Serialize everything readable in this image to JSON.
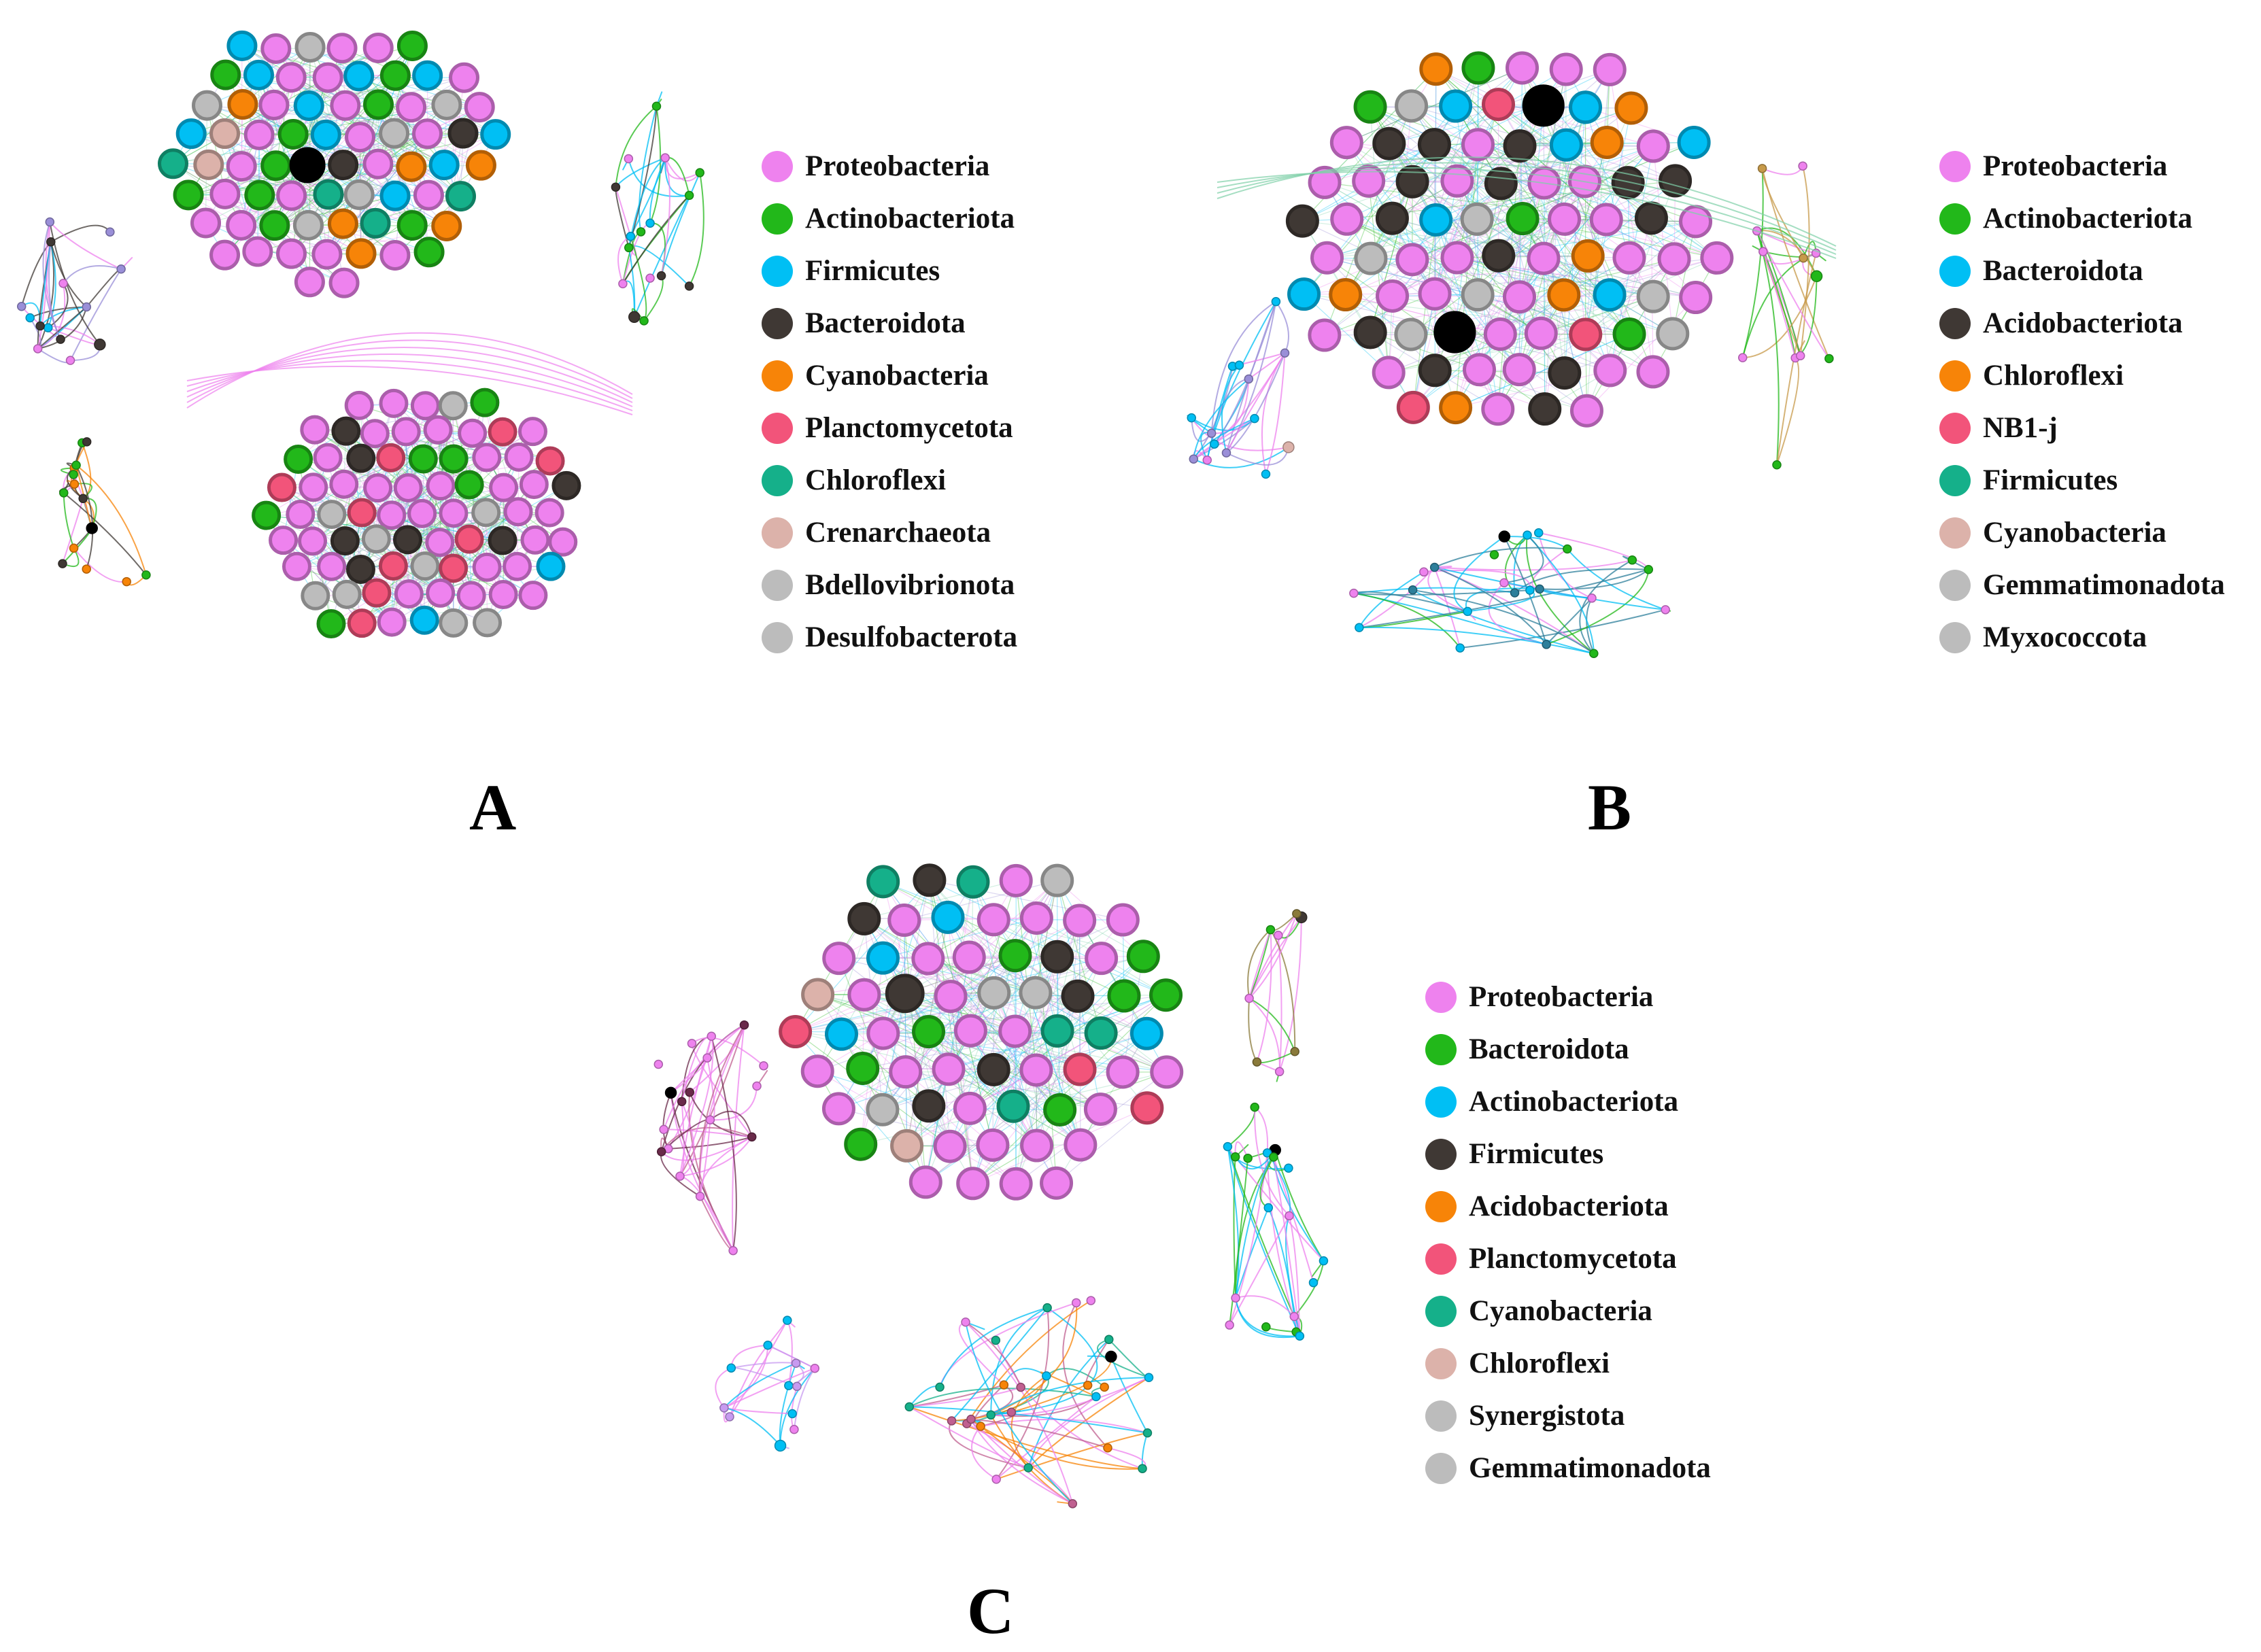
{
  "colors": {
    "Proteobacteria": "#ee82ee",
    "Actinobacteriota": "#22b81a",
    "Firmicutes": "#00bff4",
    "Bacteroidota": "#3f3834",
    "Cyanobacteria": "#f78408",
    "Planctomycetota": "#f2547a",
    "Chloroflexi": "#15b08a",
    "Crenarchaeota": "#dcb2aa",
    "Bdellovibrionota": "#bcbcbc",
    "Desulfobacterota": "#bcbcbc",
    "hub": "#000000"
  },
  "panels": [
    {
      "id": "A",
      "label": "A",
      "legend": [
        {
          "name": "Proteobacteria",
          "color": "#ee82ee"
        },
        {
          "name": "Actinobacteriota",
          "color": "#22b81a"
        },
        {
          "name": "Firmicutes",
          "color": "#00bff4"
        },
        {
          "name": "Bacteroidota",
          "color": "#3f3834"
        },
        {
          "name": "Cyanobacteria",
          "color": "#f78408"
        },
        {
          "name": "Planctomycetota",
          "color": "#f2547a"
        },
        {
          "name": "Chloroflexi",
          "color": "#15b08a"
        },
        {
          "name": "Crenarchaeota",
          "color": "#dcb2aa"
        },
        {
          "name": "Bdellovibrionota",
          "color": "#bcbcbc"
        },
        {
          "name": "Desulfobacterota",
          "color": "#bcbcbc"
        }
      ]
    },
    {
      "id": "B",
      "label": "B",
      "legend": [
        {
          "name": "Proteobacteria",
          "color": "#ee82ee"
        },
        {
          "name": "Actinobacteriota",
          "color": "#22b81a"
        },
        {
          "name": "Bacteroidota",
          "color": "#00bff4"
        },
        {
          "name": "Acidobacteriota",
          "color": "#3f3834"
        },
        {
          "name": "Chloroflexi",
          "color": "#f78408"
        },
        {
          "name": "NB1-j",
          "color": "#f2547a"
        },
        {
          "name": "Firmicutes",
          "color": "#15b08a"
        },
        {
          "name": "Cyanobacteria",
          "color": "#dcb2aa"
        },
        {
          "name": "Gemmatimonadota",
          "color": "#bcbcbc"
        },
        {
          "name": "Myxococcota",
          "color": "#bcbcbc"
        }
      ]
    },
    {
      "id": "C",
      "label": "C",
      "legend": [
        {
          "name": "Proteobacteria",
          "color": "#ee82ee"
        },
        {
          "name": "Bacteroidota",
          "color": "#22b81a"
        },
        {
          "name": "Actinobacteriota",
          "color": "#00bff4"
        },
        {
          "name": "Firmicutes",
          "color": "#3f3834"
        },
        {
          "name": "Acidobacteriota",
          "color": "#f78408"
        },
        {
          "name": "Planctomycetota",
          "color": "#f2547a"
        },
        {
          "name": "Cyanobacteria",
          "color": "#15b08a"
        },
        {
          "name": "Chloroflexi",
          "color": "#dcb2aa"
        },
        {
          "name": "Synergistota",
          "color": "#bcbcbc"
        },
        {
          "name": "Gemmatimonadota",
          "color": "#bcbcbc"
        }
      ]
    }
  ]
}
